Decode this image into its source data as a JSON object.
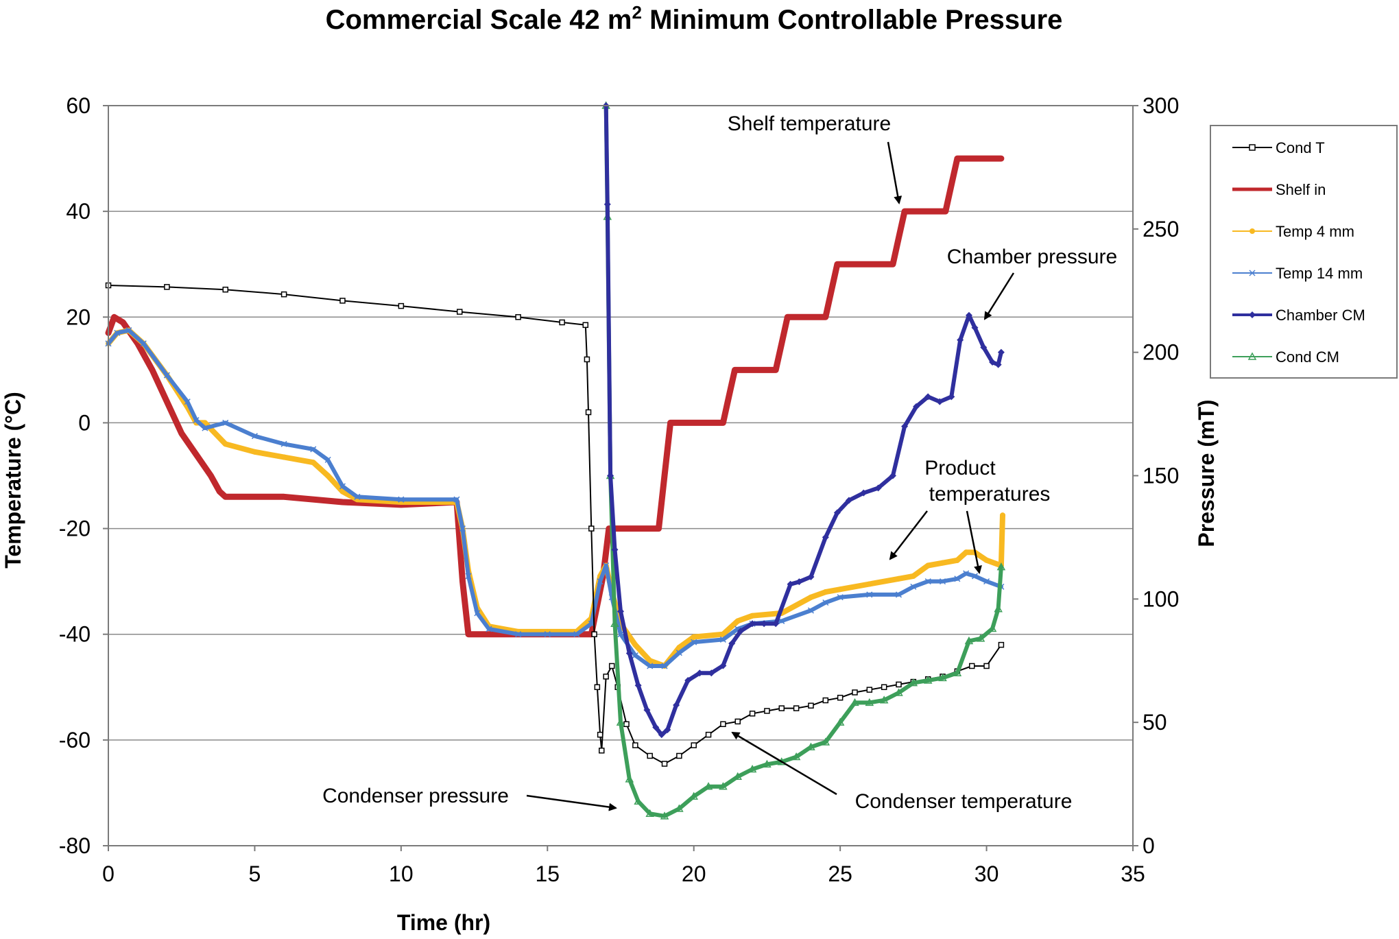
{
  "chart_data": {
    "type": "line",
    "title": "Commercial Scale 42 m",
    "title_superscript": "2",
    "title_suffix": " Minimum Controllable Pressure",
    "xlabel": "Time (hr)",
    "ylabel": "Temperature (°C)",
    "y2label": "Pressure (mT)",
    "xlim": [
      0,
      35
    ],
    "ylim": [
      -80,
      60
    ],
    "y2lim": [
      0,
      300
    ],
    "x_ticks": [
      "0",
      "5",
      "10",
      "15",
      "20",
      "25",
      "30",
      "35"
    ],
    "y_ticks": [
      "60",
      "40",
      "20",
      "0",
      "-20",
      "-40",
      "-60",
      "-80"
    ],
    "y2_ticks": [
      "300",
      "250",
      "200",
      "150",
      "100",
      "50",
      "0"
    ],
    "grid": "horizontal",
    "legend_position": "right",
    "series": [
      {
        "name": "Cond T",
        "axis": "left",
        "color": "#000000",
        "marker": "square",
        "x": [
          0,
          2,
          4,
          6,
          8,
          10,
          12,
          14,
          15.5,
          16.3,
          16.35,
          16.4,
          16.5,
          16.6,
          16.7,
          16.8,
          16.85,
          17.0,
          17.2,
          17.4,
          17.7,
          18.0,
          18.5,
          19.0,
          19.5,
          20.0,
          20.5,
          21.0,
          21.5,
          22.0,
          22.5,
          23.0,
          23.5,
          24.0,
          24.5,
          25.0,
          25.5,
          26.0,
          26.5,
          27.0,
          27.5,
          28.0,
          28.5,
          29.0,
          29.5,
          30.0,
          30.5
        ],
        "y": [
          26,
          25.7,
          25.2,
          24.3,
          23.1,
          22.1,
          21,
          20,
          19,
          18.5,
          12,
          2,
          -20,
          -40,
          -50,
          -59,
          -62,
          -48,
          -46,
          -50,
          -57,
          -61,
          -63,
          -64.5,
          -63,
          -61,
          -59,
          -57,
          -56.5,
          -55,
          -54.5,
          -54,
          -54,
          -53.5,
          -52.5,
          -52,
          -51,
          -50.5,
          -50,
          -49.5,
          -49,
          -48.5,
          -48,
          -47,
          -46,
          -46,
          -42
        ]
      },
      {
        "name": "Shelf in",
        "axis": "left",
        "color": "#c0282d",
        "marker": "none",
        "x": [
          0,
          0.2,
          0.5,
          1,
          1.5,
          2,
          2.5,
          3,
          3.5,
          3.8,
          4,
          6,
          8,
          10,
          11.9,
          12.1,
          12.3,
          12.5,
          14,
          16.5,
          16.9,
          17.1,
          17.3,
          18.8,
          19,
          19.2,
          21,
          21.2,
          21.4,
          22.8,
          23,
          23.2,
          24.5,
          24.7,
          24.9,
          26.8,
          27,
          27.2,
          28.6,
          28.8,
          29,
          30.5
        ],
        "y": [
          17,
          20,
          19,
          15,
          10,
          4,
          -2,
          -6,
          -10,
          -13,
          -14,
          -14,
          -15,
          -15.5,
          -15,
          -30,
          -40,
          -40,
          -40,
          -40,
          -29,
          -20,
          -20,
          -20,
          -10,
          0,
          0,
          5,
          10,
          10,
          15,
          20,
          20,
          25,
          30,
          30,
          35,
          40,
          40,
          45,
          50,
          50
        ]
      },
      {
        "name": "Temp 4 mm",
        "axis": "left",
        "color": "#f8b921",
        "marker": "circle",
        "x": [
          0,
          0.3,
          0.7,
          1.2,
          2,
          2.7,
          3,
          3.3,
          4,
          5,
          6,
          7,
          7.5,
          8,
          8.5,
          10,
          11.9,
          12.1,
          12.3,
          12.6,
          13,
          14,
          15,
          16,
          16.5,
          16.8,
          17.0,
          17.2,
          17.5,
          18,
          18.5,
          19,
          19.5,
          20,
          21,
          21.5,
          22,
          23,
          24,
          24.5,
          25,
          26,
          27,
          27.5,
          28,
          28.5,
          29,
          29.3,
          29.6,
          30,
          30.5,
          30.55
        ],
        "y": [
          15,
          17,
          17.5,
          15,
          9,
          3,
          0,
          0,
          -4,
          -5.5,
          -6.5,
          -7.5,
          -10,
          -13,
          -14.5,
          -15,
          -15,
          -20,
          -28,
          -35,
          -38.5,
          -39.5,
          -39.5,
          -39.5,
          -37,
          -29,
          -27,
          -32,
          -38,
          -42,
          -45,
          -46,
          -42.5,
          -40.5,
          -40,
          -37.5,
          -36.5,
          -36,
          -33,
          -32,
          -31.5,
          -30.5,
          -29.5,
          -29,
          -27,
          -26.5,
          -26,
          -24.5,
          -24.5,
          -26,
          -27,
          -17.5
        ]
      },
      {
        "name": "Temp 14 mm",
        "axis": "left",
        "color": "#4b7fcf",
        "marker": "x",
        "x": [
          0,
          0.3,
          0.7,
          1.2,
          2,
          2.7,
          3,
          3.3,
          4,
          5,
          6,
          7,
          7.5,
          8,
          8.5,
          10,
          11.9,
          12.1,
          12.3,
          12.6,
          13,
          14,
          15,
          16,
          16.5,
          16.8,
          17.0,
          17.2,
          17.5,
          18,
          18.5,
          19,
          19.5,
          20,
          21,
          21.5,
          22,
          23,
          24,
          24.5,
          25,
          26,
          27,
          27.5,
          28,
          28.5,
          29,
          29.3,
          29.6,
          30,
          30.5
        ],
        "y": [
          15,
          17,
          17.5,
          15,
          9,
          4,
          0.5,
          -1,
          0,
          -2.5,
          -4,
          -5,
          -7,
          -12,
          -14,
          -14.5,
          -14.5,
          -20,
          -29,
          -36,
          -39,
          -40,
          -40,
          -40,
          -38,
          -30,
          -27,
          -33,
          -40,
          -44,
          -46,
          -46,
          -43.5,
          -41.5,
          -41,
          -39,
          -38,
          -37.5,
          -35.5,
          -34,
          -33,
          -32.5,
          -32.5,
          -31,
          -30,
          -30,
          -29.5,
          -28.5,
          -29,
          -30,
          -31
        ]
      },
      {
        "name": "Chamber CM",
        "axis": "right",
        "color": "#2f2f9e",
        "marker": "diamond",
        "x": [
          17.0,
          17.05,
          17.15,
          17.3,
          17.5,
          17.8,
          18.1,
          18.4,
          18.7,
          18.9,
          19.1,
          19.4,
          19.8,
          20.2,
          20.6,
          21,
          21.3,
          21.6,
          22,
          22.4,
          22.8,
          23.3,
          23.6,
          24,
          24.5,
          24.9,
          25.3,
          25.8,
          26.3,
          26.8,
          27.2,
          27.6,
          28,
          28.4,
          28.8,
          29.1,
          29.4,
          29.6,
          29.9,
          30.2,
          30.4,
          30.5
        ],
        "y": [
          300,
          260,
          150,
          120,
          95,
          78,
          65,
          55,
          48,
          45,
          47,
          57,
          67,
          70,
          70,
          73,
          82,
          87,
          90,
          90,
          90,
          106,
          107,
          109,
          125,
          135,
          140,
          143,
          145,
          150,
          170,
          178,
          182,
          180,
          182,
          205,
          215,
          210,
          202,
          196,
          195,
          200
        ]
      },
      {
        "name": "Cond CM",
        "axis": "right",
        "color": "#3d9f5a",
        "marker": "triangle",
        "x": [
          17.0,
          17.05,
          17.15,
          17.3,
          17.5,
          17.8,
          18.1,
          18.5,
          19,
          19.5,
          20,
          20.5,
          21,
          21.5,
          22,
          22.5,
          23,
          23.5,
          24,
          24.5,
          25,
          25.5,
          26,
          26.5,
          27,
          27.5,
          28,
          28.5,
          29,
          29.4,
          29.8,
          30.2,
          30.4,
          30.5
        ],
        "y": [
          300,
          255,
          150,
          90,
          50,
          27,
          18,
          13,
          12,
          15,
          20,
          24,
          24,
          28,
          31,
          33,
          34,
          36,
          40,
          42,
          50,
          58,
          58,
          59,
          62,
          66,
          67,
          68,
          70,
          83,
          84,
          88,
          96,
          113
        ]
      }
    ],
    "annotations": [
      {
        "text": "Shelf temperature"
      },
      {
        "text": "Chamber pressure"
      },
      {
        "text": "Product"
      },
      {
        "text": "temperatures"
      },
      {
        "text": "Condenser temperature"
      },
      {
        "text": "Condenser pressure"
      }
    ]
  }
}
